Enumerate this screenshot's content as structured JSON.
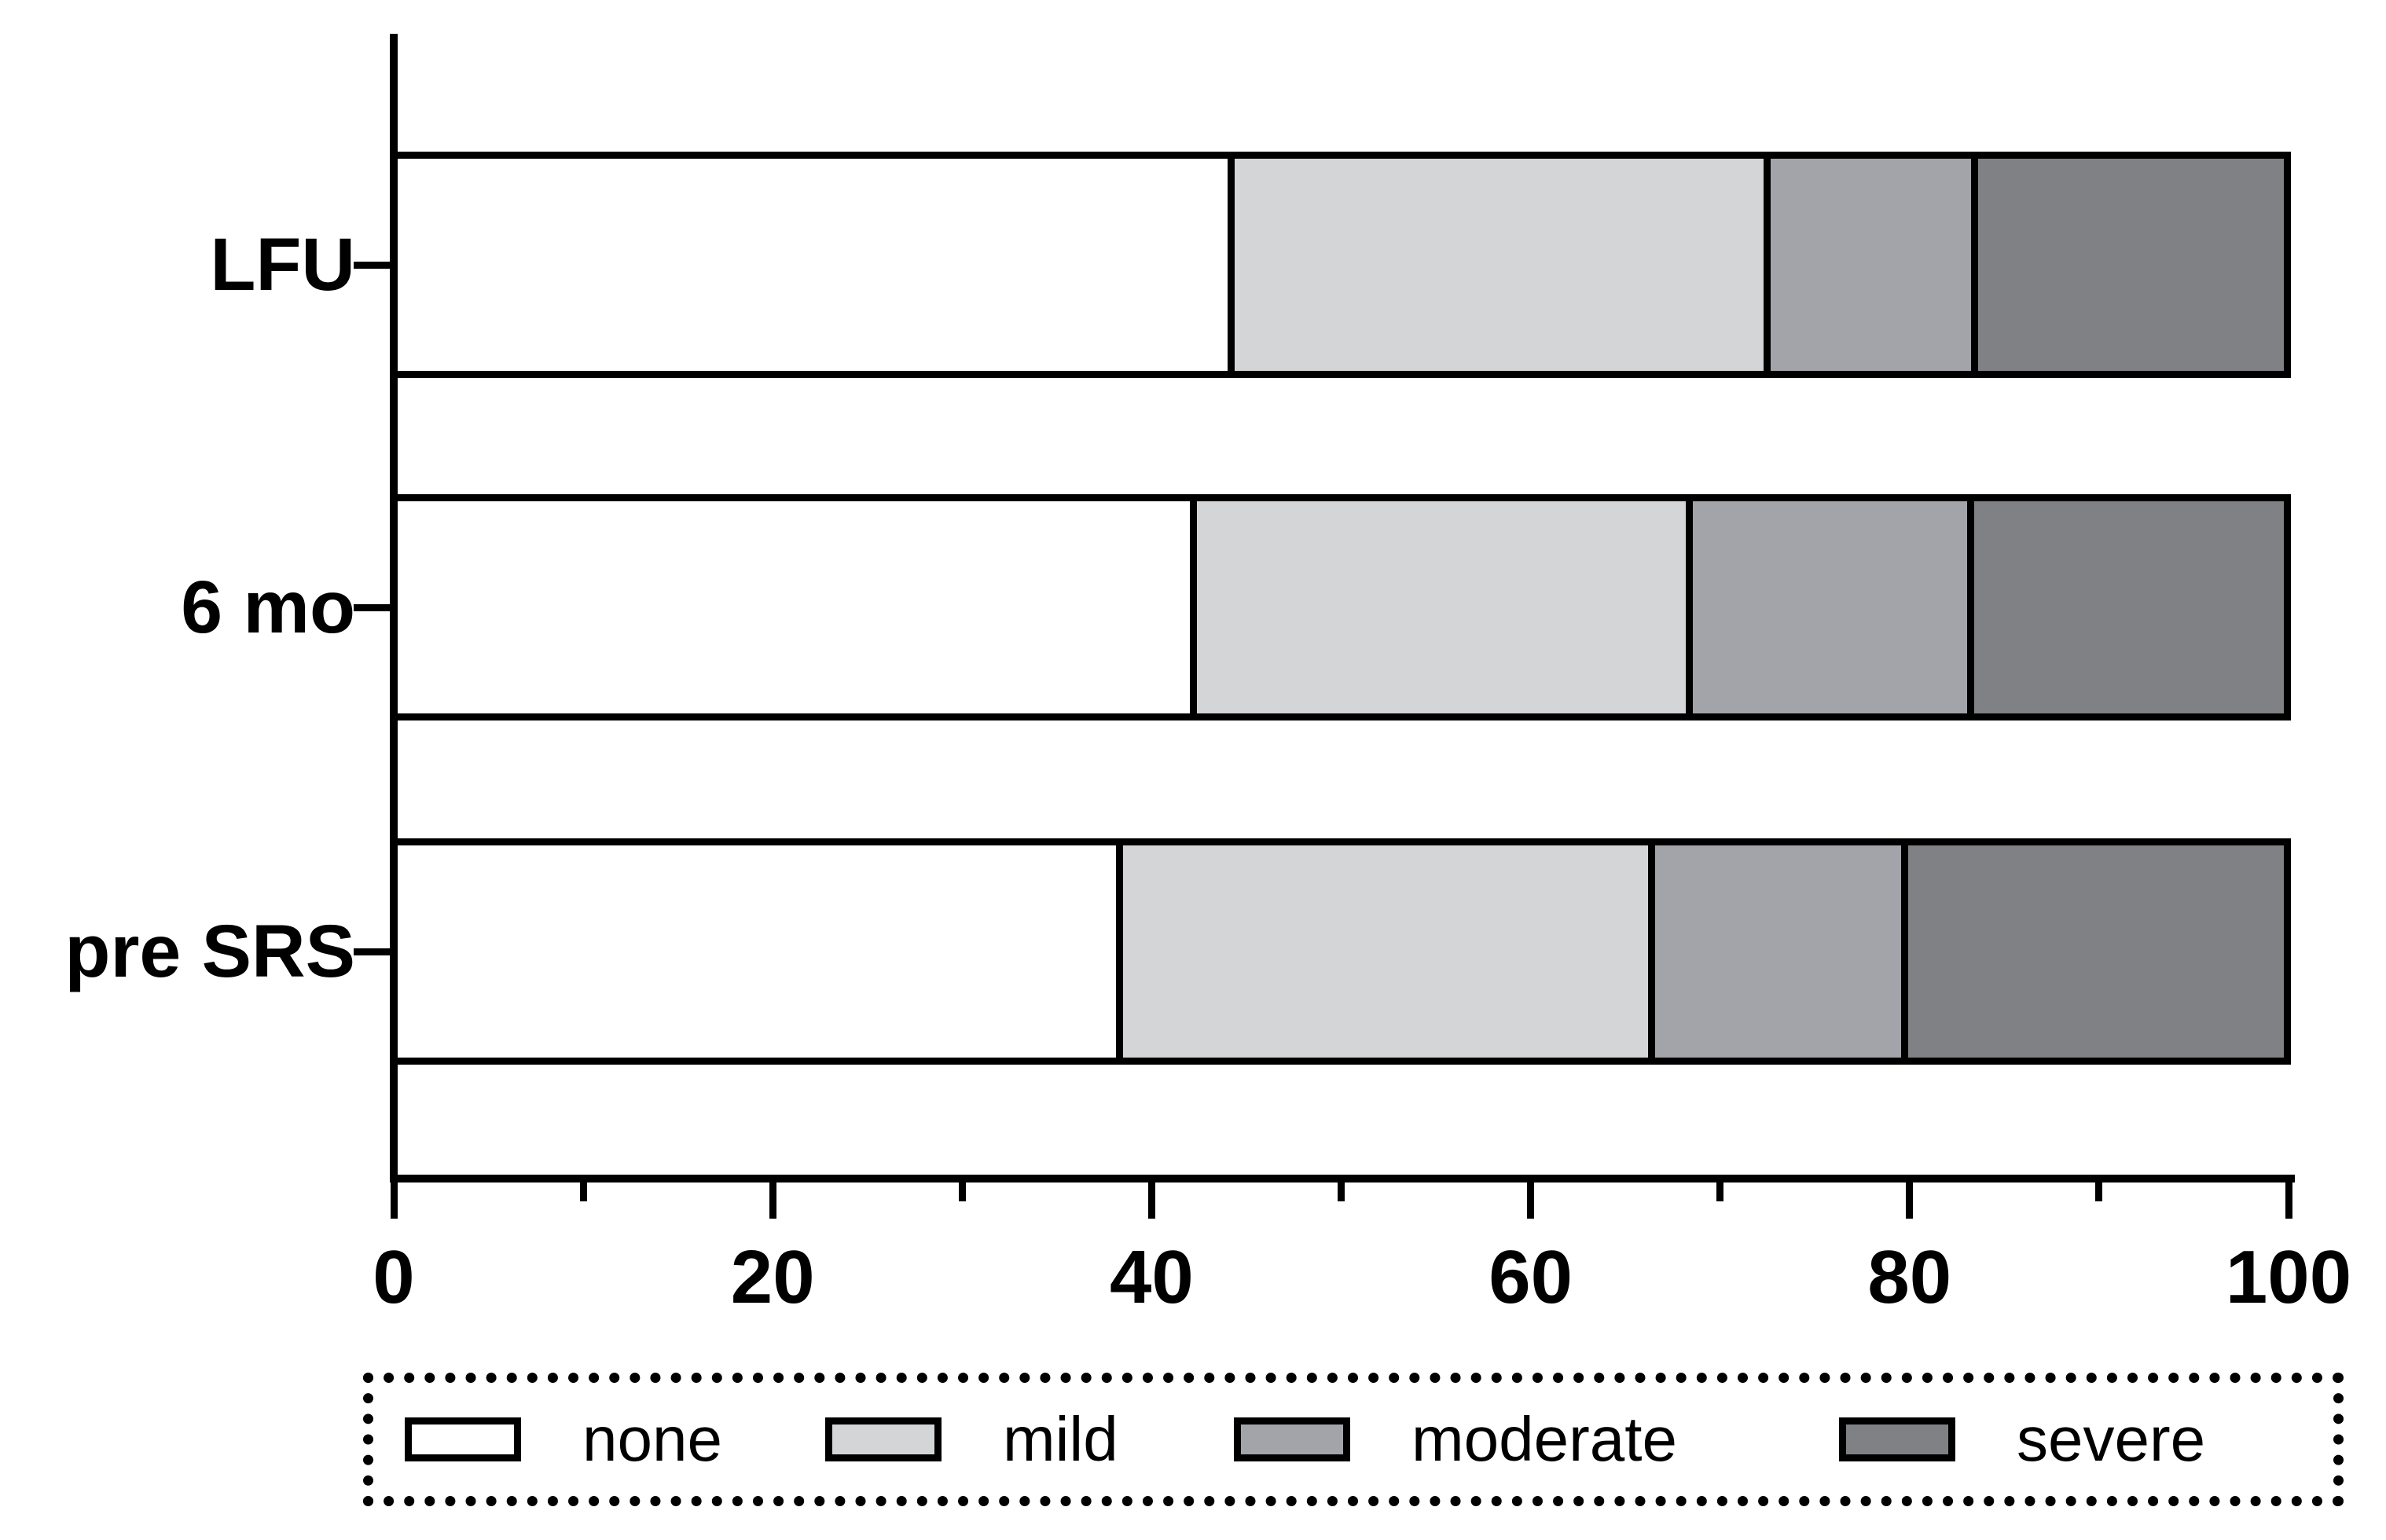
{
  "chart_data": {
    "type": "bar",
    "orientation": "horizontal",
    "stacked": true,
    "title": "",
    "xlabel": "",
    "ylabel": "",
    "categories": [
      "LFU",
      "6 mo",
      "pre SRS"
    ],
    "series": [
      {
        "name": "none",
        "color": "#ffffff",
        "values": [
          44.0,
          42.0,
          38.1
        ]
      },
      {
        "name": "mild",
        "color": "#d4d5d7",
        "values": [
          28.4,
          26.3,
          28.2
        ]
      },
      {
        "name": "moderate",
        "color": "#a2a4a9",
        "values": [
          11.0,
          14.9,
          13.4
        ]
      },
      {
        "name": "severe",
        "color": "#808184",
        "values": [
          16.6,
          16.8,
          20.3
        ]
      }
    ],
    "xlim": [
      0,
      100
    ],
    "x_major_ticks": [
      0,
      20,
      40,
      60,
      80,
      100
    ],
    "x_minor_ticks": [
      10,
      30,
      50,
      70,
      90
    ],
    "x_tick_labels": [
      "0",
      "20",
      "40",
      "60",
      "80",
      "100"
    ],
    "grid": false,
    "legend_position": "bottom",
    "bar_outline_color": "#000000"
  },
  "legend": {
    "items": [
      {
        "label": "none",
        "color": "#ffffff"
      },
      {
        "label": "mild",
        "color": "#d4d5d7"
      },
      {
        "label": "moderate",
        "color": "#a2a4a9"
      },
      {
        "label": "severe",
        "color": "#808184"
      }
    ]
  },
  "colors": {
    "axis": "#000000",
    "background": "#ffffff"
  }
}
